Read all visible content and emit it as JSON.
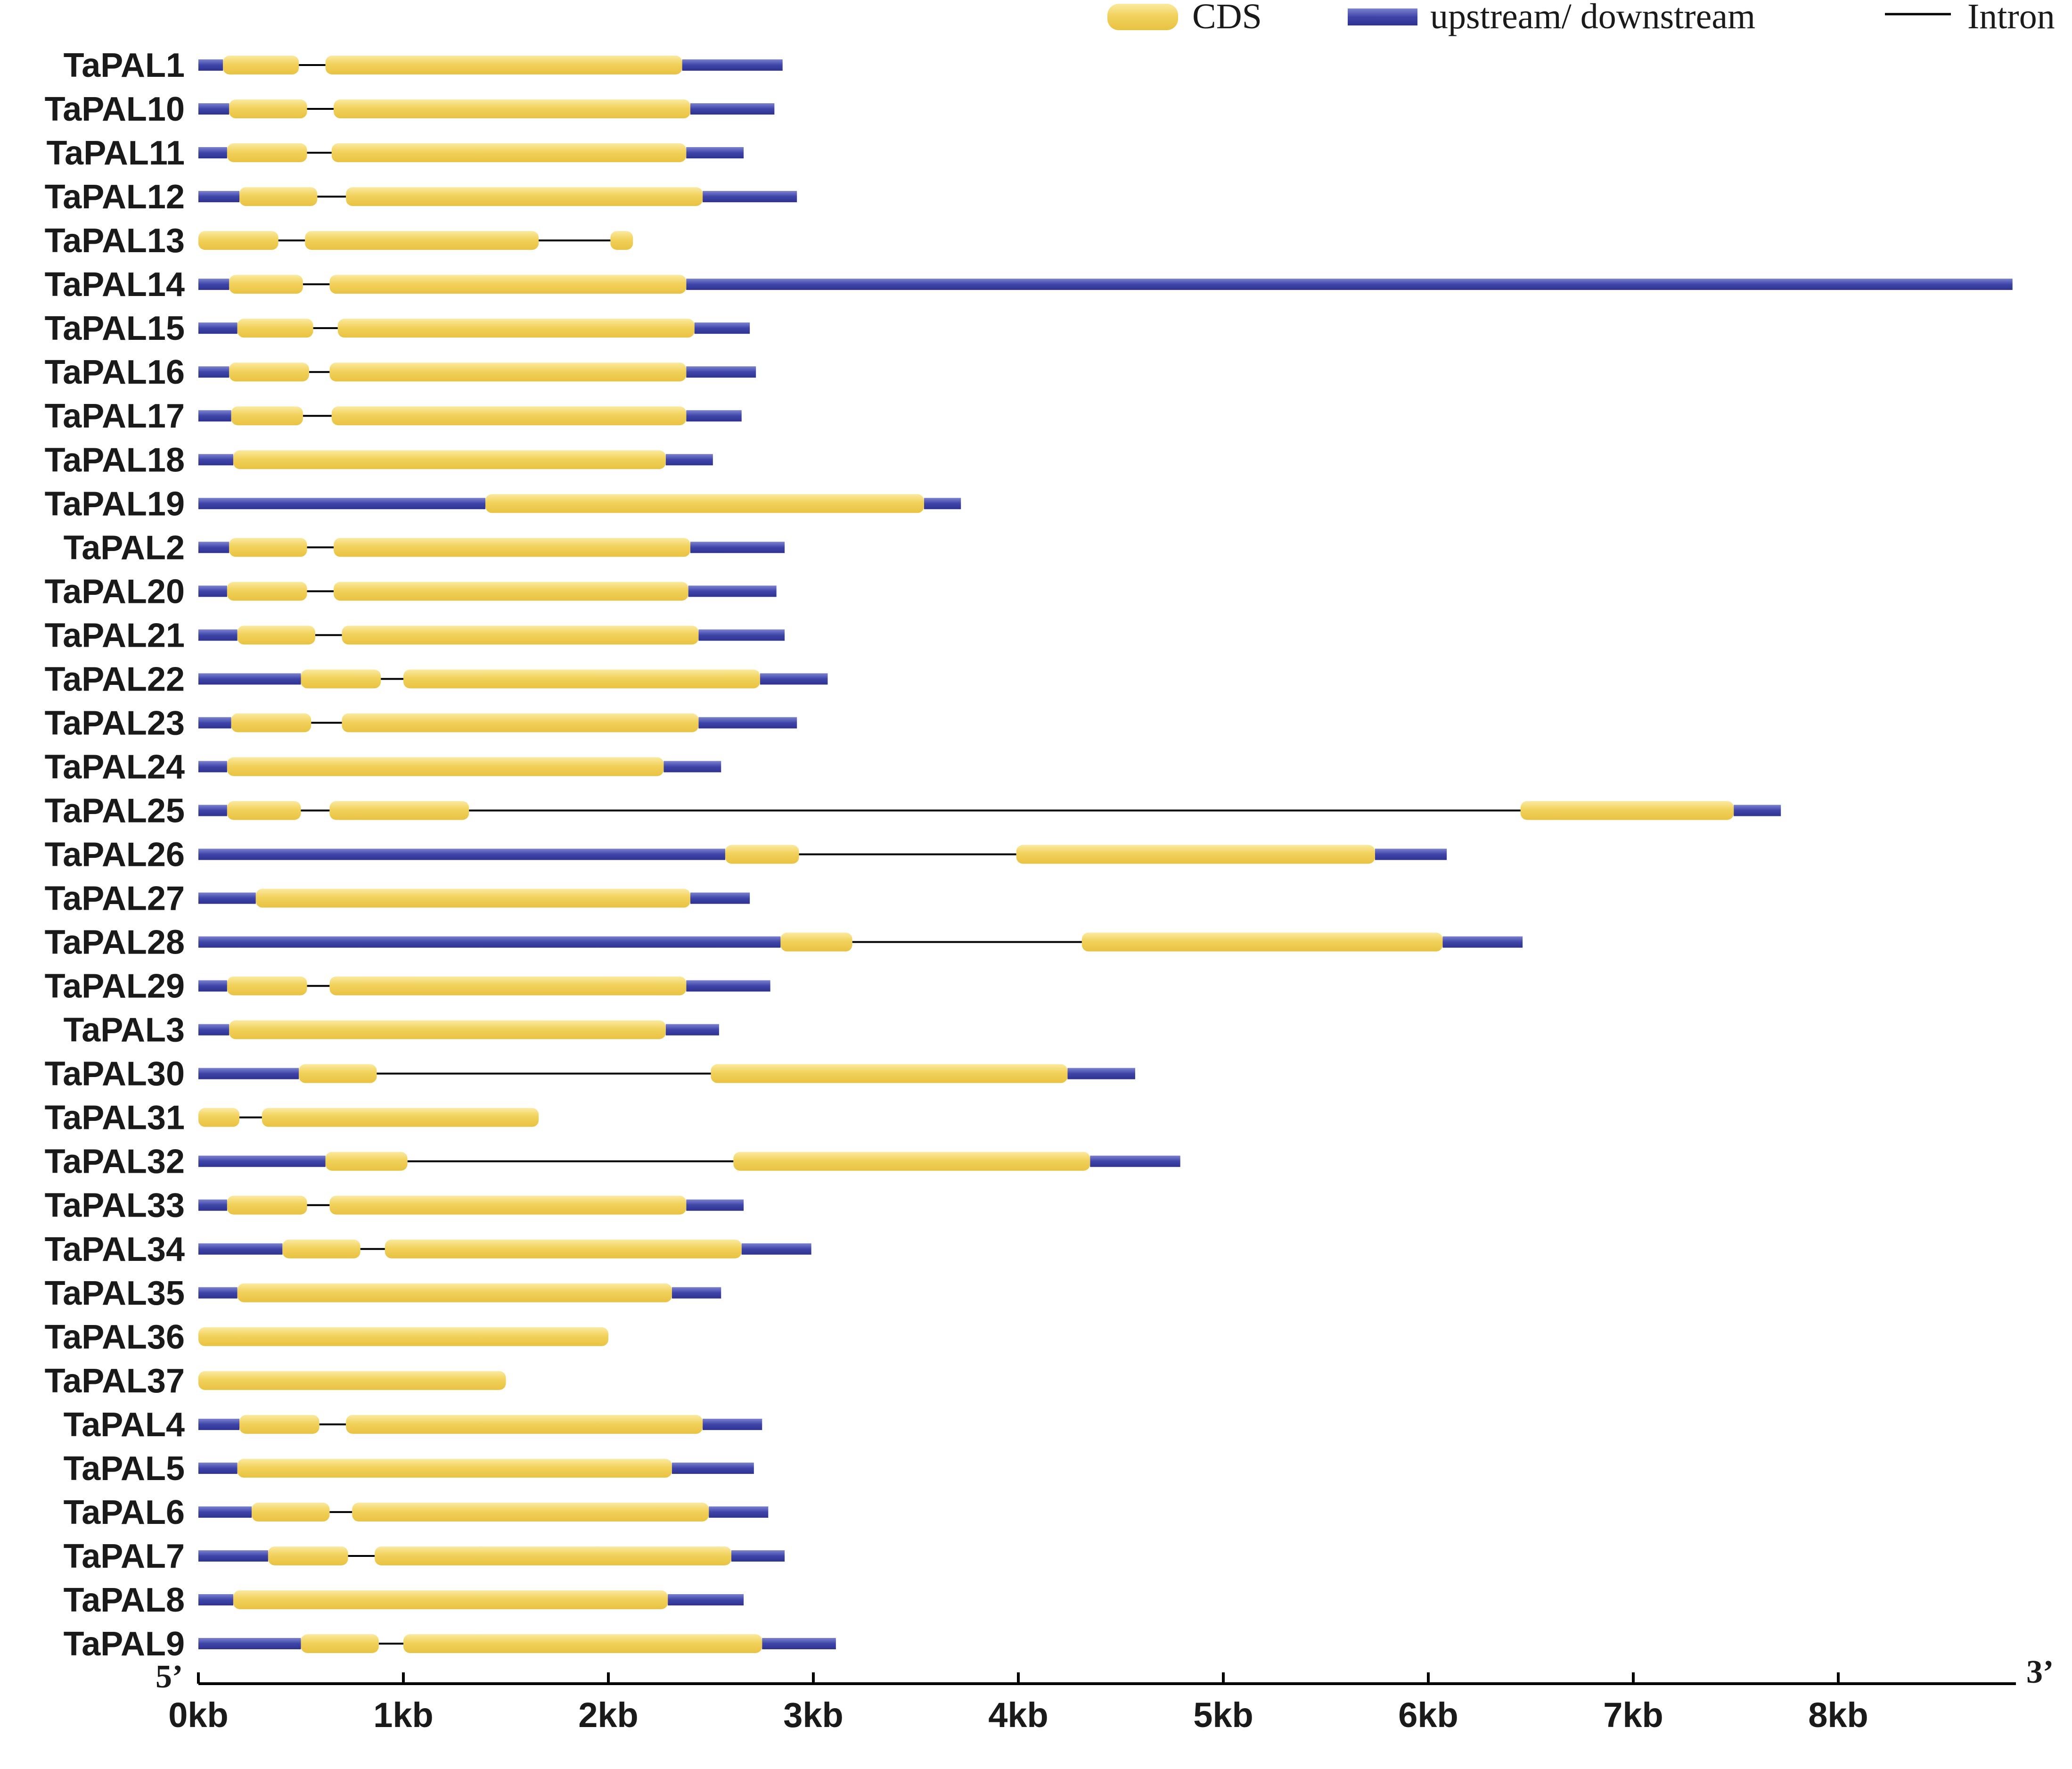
{
  "legend": {
    "cds_label": "CDS",
    "utr_label": "upstream/ downstream",
    "intron_label": "Intron"
  },
  "colors": {
    "cds": "#f2d25c",
    "cds_highlight": "#fbeaa0",
    "utr": "#3f45a8",
    "utr_highlight": "#7b82cf",
    "intron": "#000000"
  },
  "axis": {
    "label_5prime": "5’",
    "label_3prime": "3’",
    "max_kb": 8.85,
    "ticks": [
      {
        "value": 0,
        "label": "0kb"
      },
      {
        "value": 1,
        "label": "1kb"
      },
      {
        "value": 2,
        "label": "2kb"
      },
      {
        "value": 3,
        "label": "3kb"
      },
      {
        "value": 4,
        "label": "4kb"
      },
      {
        "value": 5,
        "label": "5kb"
      },
      {
        "value": 6,
        "label": "6kb"
      },
      {
        "value": 7,
        "label": "7kb"
      },
      {
        "value": 8,
        "label": "8kb"
      }
    ]
  },
  "genes": [
    {
      "name": "TaPAL1",
      "len": 2.85,
      "cds": [
        [
          0.12,
          0.49
        ],
        [
          0.62,
          2.36
        ]
      ]
    },
    {
      "name": "TaPAL10",
      "len": 2.81,
      "cds": [
        [
          0.15,
          0.53
        ],
        [
          0.66,
          2.4
        ]
      ]
    },
    {
      "name": "TaPAL11",
      "len": 2.66,
      "cds": [
        [
          0.14,
          0.53
        ],
        [
          0.65,
          2.38
        ]
      ]
    },
    {
      "name": "TaPAL12",
      "len": 2.92,
      "cds": [
        [
          0.2,
          0.58
        ],
        [
          0.72,
          2.46
        ]
      ]
    },
    {
      "name": "TaPAL13",
      "len": 2.12,
      "cds": [
        [
          0.0,
          0.39
        ],
        [
          0.52,
          1.66
        ],
        [
          2.01,
          2.12
        ]
      ]
    },
    {
      "name": "TaPAL14",
      "len": 8.85,
      "cds": [
        [
          0.15,
          0.51
        ],
        [
          0.64,
          2.38
        ]
      ]
    },
    {
      "name": "TaPAL15",
      "len": 2.69,
      "cds": [
        [
          0.19,
          0.56
        ],
        [
          0.68,
          2.42
        ]
      ]
    },
    {
      "name": "TaPAL16",
      "len": 2.72,
      "cds": [
        [
          0.15,
          0.54
        ],
        [
          0.64,
          2.38
        ]
      ]
    },
    {
      "name": "TaPAL17",
      "len": 2.65,
      "cds": [
        [
          0.16,
          0.51
        ],
        [
          0.65,
          2.38
        ]
      ]
    },
    {
      "name": "TaPAL18",
      "len": 2.51,
      "cds": [
        [
          0.17,
          2.28
        ]
      ]
    },
    {
      "name": "TaPAL19",
      "len": 3.72,
      "cds": [
        [
          1.4,
          3.54
        ]
      ]
    },
    {
      "name": "TaPAL2",
      "len": 2.86,
      "cds": [
        [
          0.15,
          0.53
        ],
        [
          0.66,
          2.4
        ]
      ]
    },
    {
      "name": "TaPAL20",
      "len": 2.82,
      "cds": [
        [
          0.14,
          0.53
        ],
        [
          0.66,
          2.39
        ]
      ]
    },
    {
      "name": "TaPAL21",
      "len": 2.86,
      "cds": [
        [
          0.19,
          0.57
        ],
        [
          0.7,
          2.44
        ]
      ]
    },
    {
      "name": "TaPAL22",
      "len": 3.07,
      "cds": [
        [
          0.5,
          0.89
        ],
        [
          1.0,
          2.74
        ]
      ]
    },
    {
      "name": "TaPAL23",
      "len": 2.92,
      "cds": [
        [
          0.16,
          0.55
        ],
        [
          0.7,
          2.44
        ]
      ]
    },
    {
      "name": "TaPAL24",
      "len": 2.55,
      "cds": [
        [
          0.14,
          2.27
        ]
      ]
    },
    {
      "name": "TaPAL25",
      "len": 7.72,
      "cds": [
        [
          0.14,
          0.5
        ],
        [
          0.64,
          1.32
        ],
        [
          6.45,
          7.49
        ]
      ]
    },
    {
      "name": "TaPAL26",
      "len": 6.09,
      "cds": [
        [
          2.57,
          2.93
        ],
        [
          3.99,
          5.74
        ]
      ]
    },
    {
      "name": "TaPAL27",
      "len": 2.69,
      "cds": [
        [
          0.28,
          2.4
        ]
      ]
    },
    {
      "name": "TaPAL28",
      "len": 6.46,
      "cds": [
        [
          2.84,
          3.19
        ],
        [
          4.31,
          6.07
        ]
      ]
    },
    {
      "name": "TaPAL29",
      "len": 2.79,
      "cds": [
        [
          0.14,
          0.53
        ],
        [
          0.64,
          2.38
        ]
      ]
    },
    {
      "name": "TaPAL3",
      "len": 2.54,
      "cds": [
        [
          0.15,
          2.28
        ]
      ]
    },
    {
      "name": "TaPAL30",
      "len": 4.57,
      "cds": [
        [
          0.49,
          0.87
        ],
        [
          2.5,
          4.24
        ]
      ]
    },
    {
      "name": "TaPAL31",
      "len": 1.66,
      "cds": [
        [
          0.0,
          0.2
        ],
        [
          0.31,
          1.66
        ]
      ]
    },
    {
      "name": "TaPAL32",
      "len": 4.79,
      "cds": [
        [
          0.62,
          1.02
        ],
        [
          2.61,
          4.35
        ]
      ]
    },
    {
      "name": "TaPAL33",
      "len": 2.66,
      "cds": [
        [
          0.14,
          0.53
        ],
        [
          0.64,
          2.38
        ]
      ]
    },
    {
      "name": "TaPAL34",
      "len": 2.99,
      "cds": [
        [
          0.41,
          0.79
        ],
        [
          0.91,
          2.65
        ]
      ]
    },
    {
      "name": "TaPAL35",
      "len": 2.55,
      "cds": [
        [
          0.19,
          2.31
        ]
      ]
    },
    {
      "name": "TaPAL36",
      "len": 2.0,
      "cds": [
        [
          0.0,
          2.0
        ]
      ]
    },
    {
      "name": "TaPAL37",
      "len": 1.5,
      "cds": [
        [
          0.0,
          1.5
        ]
      ]
    },
    {
      "name": "TaPAL4",
      "len": 2.75,
      "cds": [
        [
          0.2,
          0.59
        ],
        [
          0.72,
          2.46
        ]
      ]
    },
    {
      "name": "TaPAL5",
      "len": 2.71,
      "cds": [
        [
          0.19,
          2.31
        ]
      ]
    },
    {
      "name": "TaPAL6",
      "len": 2.78,
      "cds": [
        [
          0.26,
          0.64
        ],
        [
          0.75,
          2.49
        ]
      ]
    },
    {
      "name": "TaPAL7",
      "len": 2.86,
      "cds": [
        [
          0.34,
          0.73
        ],
        [
          0.86,
          2.6
        ]
      ]
    },
    {
      "name": "TaPAL8",
      "len": 2.66,
      "cds": [
        [
          0.17,
          2.29
        ]
      ]
    },
    {
      "name": "TaPAL9",
      "len": 3.11,
      "cds": [
        [
          0.5,
          0.88
        ],
        [
          1.0,
          2.75
        ]
      ]
    }
  ]
}
